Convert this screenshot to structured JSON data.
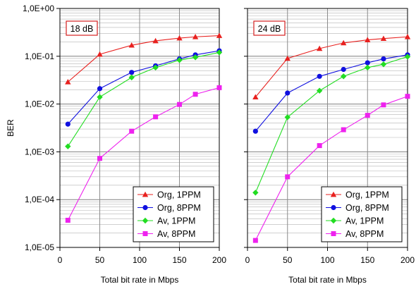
{
  "chart_data": [
    {
      "type": "line",
      "annotation": "18 dB",
      "xlabel": "Total bit rate in Mbps",
      "ylabel": "BER",
      "y_scale": "log",
      "xlim": [
        0,
        200
      ],
      "ylim": [
        1e-05,
        1
      ],
      "x_ticks": [
        "0",
        "50",
        "100",
        "150",
        "200"
      ],
      "y_ticks": [
        "1,0E-05",
        "1,0E-04",
        "1,0E-03",
        "1,0E-02",
        "1,0E-01",
        "1,0E+00"
      ],
      "grid": true,
      "legend_position": "bottom-right",
      "x": [
        10,
        50,
        90,
        120,
        150,
        170,
        200
      ],
      "series": [
        {
          "name": "Org, 1PPM",
          "color": "#e8211f",
          "marker": "triangle",
          "values": [
            0.029,
            0.11,
            0.17,
            0.21,
            0.24,
            0.255,
            0.27
          ]
        },
        {
          "name": "Org, 8PPM",
          "color": "#1010e0",
          "marker": "circle",
          "values": [
            0.0038,
            0.021,
            0.046,
            0.063,
            0.088,
            0.107,
            0.13
          ]
        },
        {
          "name": "Av, 1PPM",
          "color": "#22dd22",
          "marker": "diamond",
          "values": [
            0.0013,
            0.014,
            0.036,
            0.058,
            0.083,
            0.095,
            0.12
          ]
        },
        {
          "name": "Av, 8PPM",
          "color": "#ee22ee",
          "marker": "square",
          "values": [
            3.7e-05,
            0.00073,
            0.0027,
            0.0054,
            0.0098,
            0.016,
            0.022
          ]
        }
      ]
    },
    {
      "type": "line",
      "annotation": "24 dB",
      "xlabel": "Total bit rate in Mbps",
      "ylabel": "",
      "y_scale": "log",
      "xlim": [
        0,
        200
      ],
      "ylim": [
        1e-05,
        1
      ],
      "x_ticks": [
        "0",
        "50",
        "100",
        "150",
        "200"
      ],
      "y_ticks": [],
      "grid": true,
      "legend_position": "bottom-right",
      "x": [
        10,
        50,
        90,
        120,
        150,
        170,
        200
      ],
      "series": [
        {
          "name": "Org, 1PPM",
          "color": "#e8211f",
          "marker": "triangle",
          "values": [
            0.014,
            0.09,
            0.145,
            0.19,
            0.22,
            0.235,
            0.255
          ]
        },
        {
          "name": "Org, 8PPM",
          "color": "#1010e0",
          "marker": "circle",
          "values": [
            0.0027,
            0.017,
            0.038,
            0.053,
            0.073,
            0.088,
            0.107
          ]
        },
        {
          "name": "Av, 1PPM",
          "color": "#22dd22",
          "marker": "diamond",
          "values": [
            0.00014,
            0.0053,
            0.019,
            0.038,
            0.058,
            0.068,
            0.098
          ]
        },
        {
          "name": "Av, 8PPM",
          "color": "#ee22ee",
          "marker": "square",
          "values": [
            1.4e-05,
            0.0003,
            0.00135,
            0.0029,
            0.0058,
            0.0096,
            0.0145
          ]
        }
      ]
    }
  ]
}
